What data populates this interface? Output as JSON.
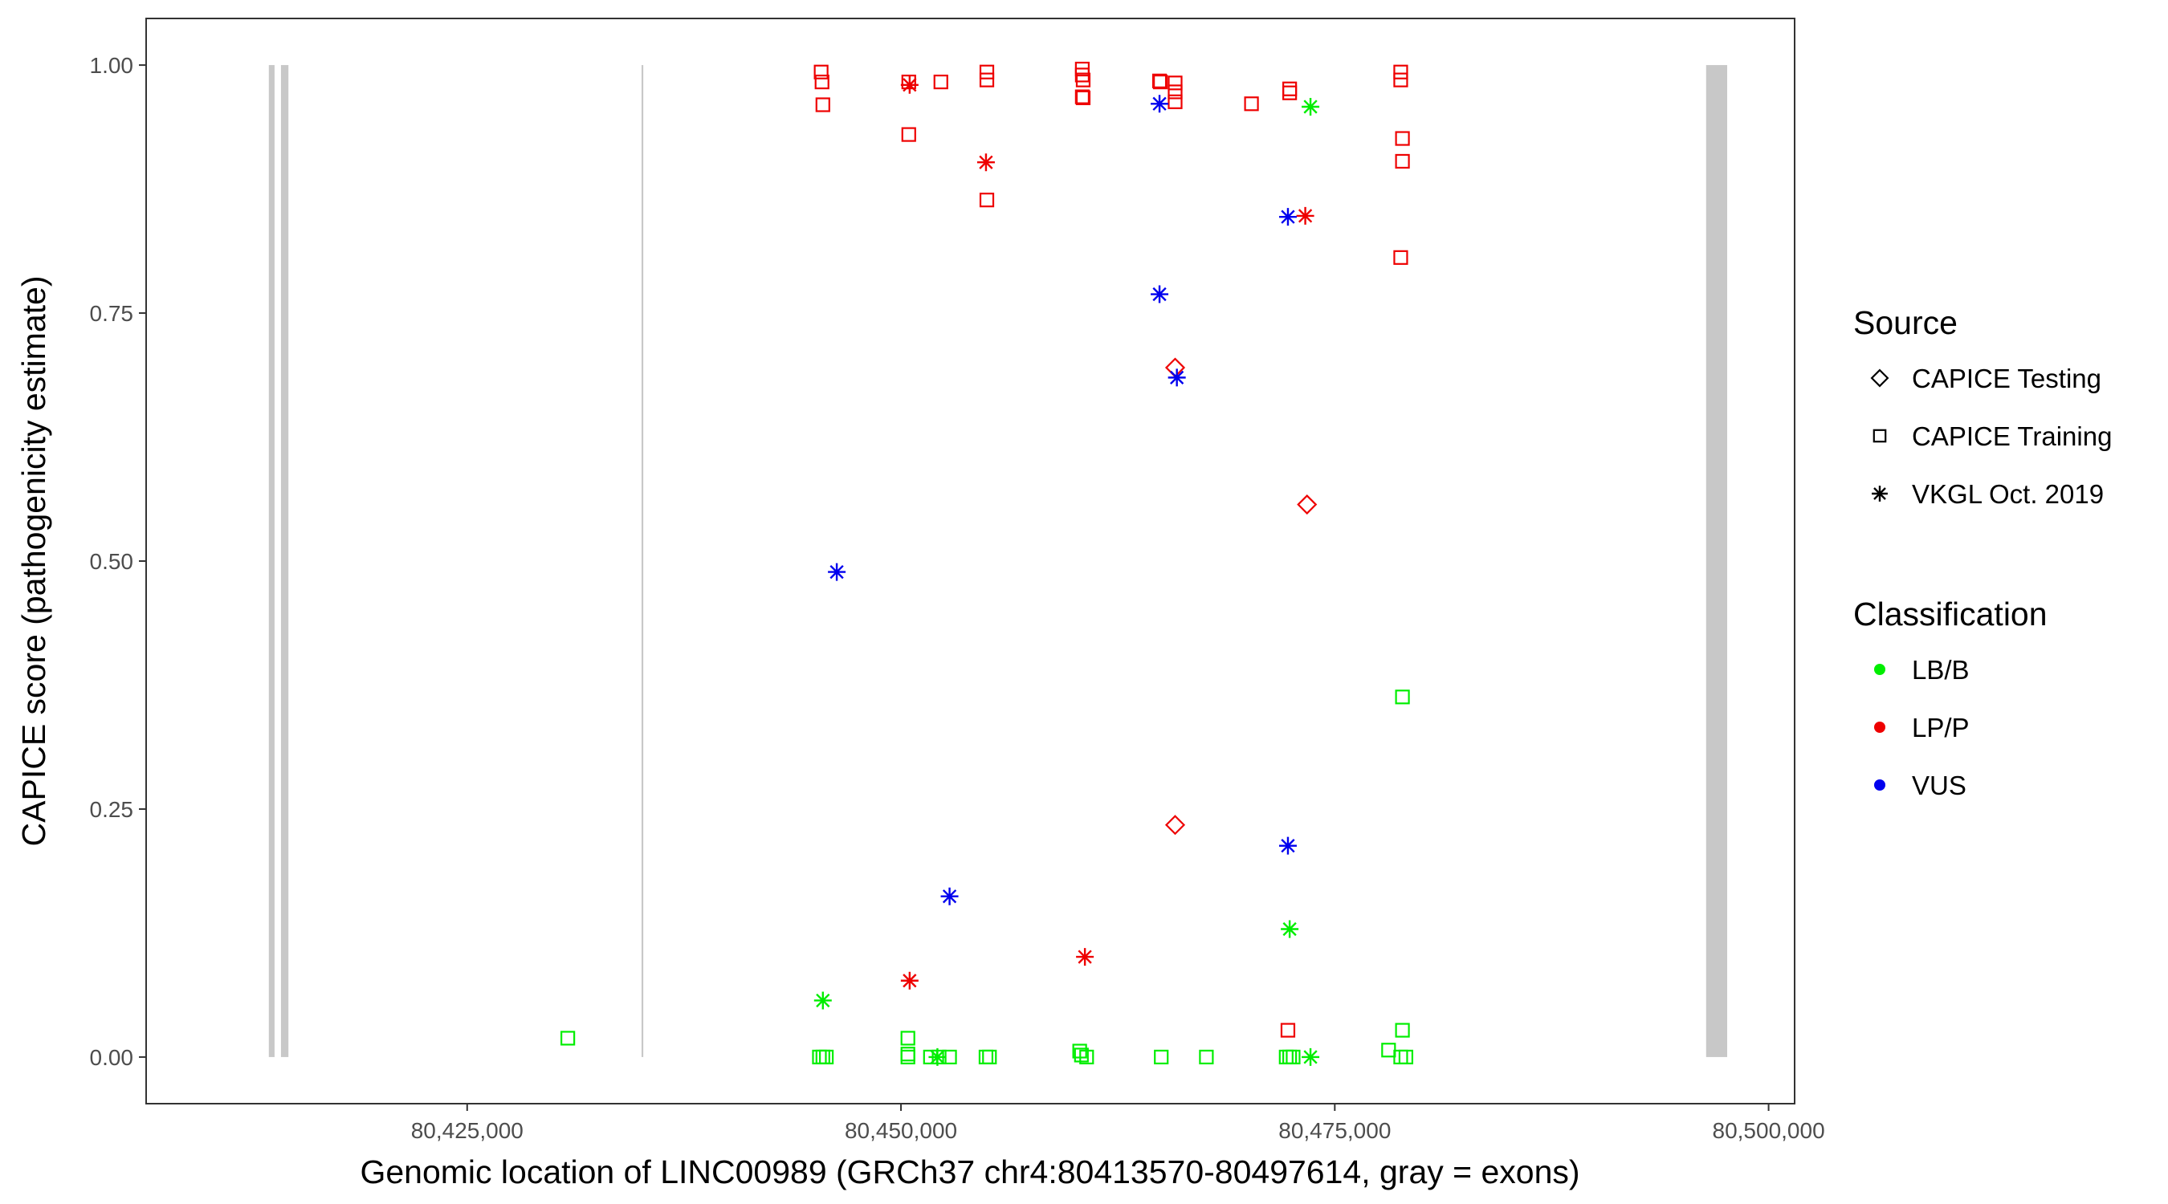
{
  "chart_data": {
    "type": "scatter",
    "title": "",
    "xlabel": "Genomic location of LINC00989 (GRCh37 chr4:80413570-80497614, gray = exons)",
    "ylabel": "CAPICE score (pathogenicity estimate)",
    "xlim": [
      80406500,
      80501500
    ],
    "ylim": [
      -0.047,
      1.047
    ],
    "x_ticks": [
      80425000,
      80450000,
      80475000,
      80500000
    ],
    "x_tick_labels": [
      "80,425,000",
      "80,450,000",
      "80,475,000",
      "80,500,000"
    ],
    "y_ticks": [
      0,
      0.25,
      0.5,
      0.75,
      1
    ],
    "y_tick_labels": [
      "0.00",
      "0.25",
      "0.50",
      "0.75",
      "1.00"
    ],
    "grid": false,
    "exons": [
      {
        "start": 80413570,
        "end": 80413900
      },
      {
        "start": 80414270,
        "end": 80414700
      },
      {
        "start": 80435050,
        "end": 80435150
      },
      {
        "start": 80496400,
        "end": 80497614
      }
    ],
    "exon_color": "#c8c8c8",
    "colors": {
      "LB/B": "#00ee00",
      "LP/P": "#ee0000",
      "VUS": "#0000ee"
    },
    "legend": {
      "position": "right",
      "source_title": "Source",
      "source_items": [
        {
          "shape": "diamond",
          "label": "CAPICE Testing"
        },
        {
          "shape": "square",
          "label": "CAPICE Training"
        },
        {
          "shape": "asterisk",
          "label": "VKGL Oct. 2019"
        }
      ],
      "class_title": "Classification",
      "class_items": [
        {
          "key": "LB/B",
          "label": "LB/B"
        },
        {
          "key": "LP/P",
          "label": "LP/P"
        },
        {
          "key": "VUS",
          "label": "VUS"
        }
      ]
    },
    "series": [
      {
        "source": "CAPICE Training",
        "class": "LP/P",
        "shape": "square",
        "points": [
          [
            80445400,
            0.993
          ],
          [
            80445450,
            0.983
          ],
          [
            80445500,
            0.96
          ],
          [
            80450450,
            0.983
          ],
          [
            80450450,
            0.93
          ],
          [
            80452300,
            0.983
          ],
          [
            80454950,
            0.993
          ],
          [
            80454950,
            0.985
          ],
          [
            80454950,
            0.864
          ],
          [
            80460450,
            0.996
          ],
          [
            80460450,
            0.99
          ],
          [
            80460500,
            0.985
          ],
          [
            80460450,
            0.968
          ],
          [
            80460500,
            0.967
          ],
          [
            80464900,
            0.984
          ],
          [
            80464950,
            0.983
          ],
          [
            80465800,
            0.982
          ],
          [
            80465800,
            0.973
          ],
          [
            80465800,
            0.963
          ],
          [
            80470200,
            0.961
          ],
          [
            80472400,
            0.976
          ],
          [
            80472400,
            0.972
          ],
          [
            80472300,
            0.027
          ],
          [
            80478800,
            0.993
          ],
          [
            80478800,
            0.985
          ],
          [
            80478900,
            0.926
          ],
          [
            80478900,
            0.903
          ],
          [
            80478800,
            0.806
          ]
        ]
      },
      {
        "source": "CAPICE Training",
        "class": "LB/B",
        "shape": "square",
        "points": [
          [
            80430800,
            0.019
          ],
          [
            80445300,
            0.0
          ],
          [
            80445500,
            0.0
          ],
          [
            80445700,
            0.0
          ],
          [
            80450400,
            0.019
          ],
          [
            80450400,
            0.003
          ],
          [
            80450400,
            0.0
          ],
          [
            80451700,
            0.0
          ],
          [
            80452200,
            0.0
          ],
          [
            80452800,
            0.0
          ],
          [
            80454900,
            0.0
          ],
          [
            80455100,
            0.0
          ],
          [
            80460300,
            0.006
          ],
          [
            80460400,
            0.002
          ],
          [
            80460700,
            0.0
          ],
          [
            80465000,
            0.0
          ],
          [
            80467600,
            0.0
          ],
          [
            80472200,
            0.0
          ],
          [
            80472400,
            0.0
          ],
          [
            80472600,
            0.0
          ],
          [
            80478100,
            0.007
          ],
          [
            80478800,
            0.0
          ],
          [
            80479100,
            0.0
          ],
          [
            80478900,
            0.027
          ],
          [
            80478900,
            0.363
          ]
        ]
      },
      {
        "source": "CAPICE Testing",
        "class": "LP/P",
        "shape": "diamond",
        "points": [
          [
            80465800,
            0.695
          ],
          [
            80473400,
            0.557
          ],
          [
            80465800,
            0.234
          ]
        ]
      },
      {
        "source": "VKGL Oct. 2019",
        "class": "LP/P",
        "shape": "asterisk",
        "points": [
          [
            80450500,
            0.98
          ],
          [
            80454900,
            0.902
          ],
          [
            80473300,
            0.848
          ],
          [
            80450500,
            0.077
          ],
          [
            80460600,
            0.101
          ]
        ]
      },
      {
        "source": "VKGL Oct. 2019",
        "class": "VUS",
        "shape": "asterisk",
        "points": [
          [
            80464900,
            0.961
          ],
          [
            80472300,
            0.847
          ],
          [
            80464900,
            0.769
          ],
          [
            80465900,
            0.685
          ],
          [
            80446300,
            0.489
          ],
          [
            80472300,
            0.213
          ],
          [
            80452800,
            0.162
          ]
        ]
      },
      {
        "source": "VKGL Oct. 2019",
        "class": "LB/B",
        "shape": "asterisk",
        "points": [
          [
            80473600,
            0.958
          ],
          [
            80472400,
            0.129
          ],
          [
            80445500,
            0.057
          ],
          [
            80452100,
            0.0
          ],
          [
            80473600,
            0.0
          ]
        ]
      }
    ]
  }
}
